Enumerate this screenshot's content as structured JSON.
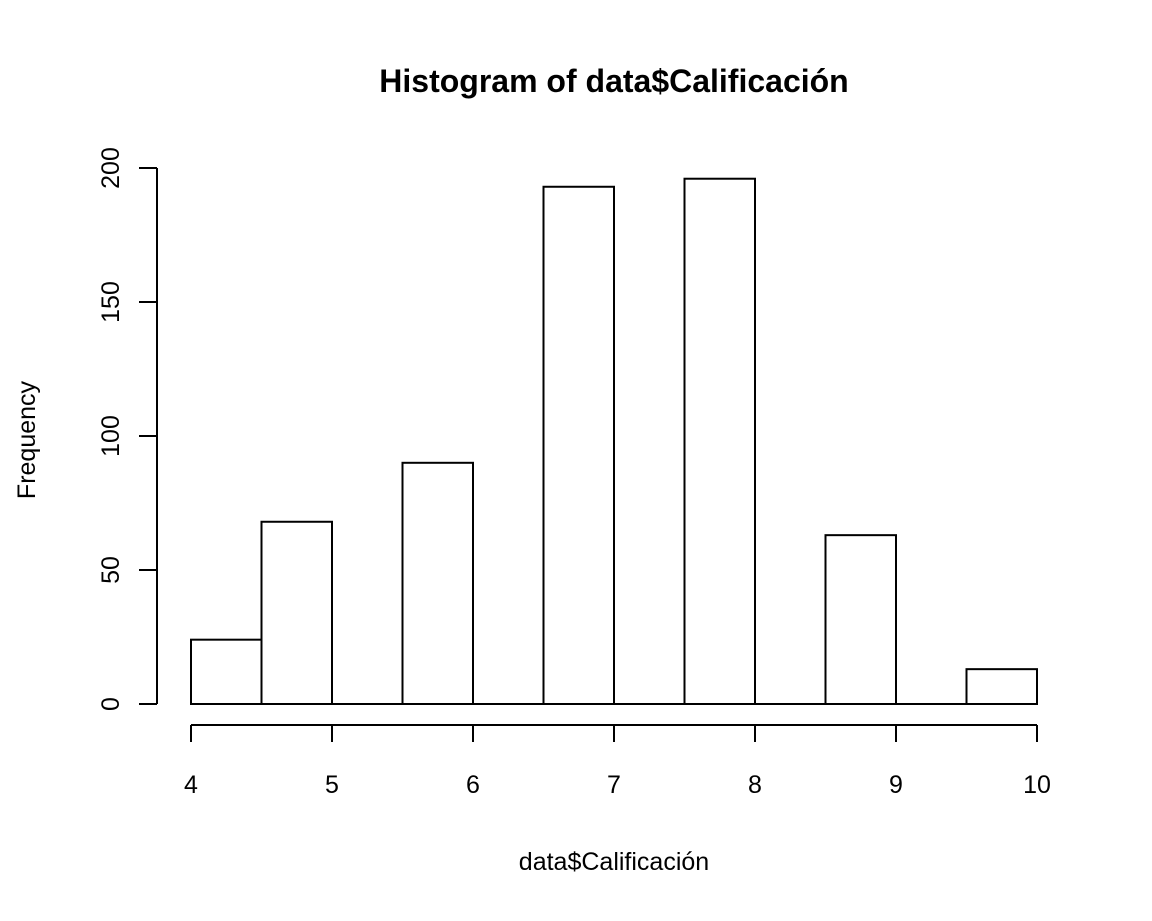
{
  "chart_data": {
    "type": "bar",
    "title": "Histogram of data$Calificación",
    "xlabel": "data$Calificación",
    "ylabel": "Frequency",
    "bins": [
      {
        "start": 4.0,
        "end": 4.5,
        "count": 24
      },
      {
        "start": 4.5,
        "end": 5.0,
        "count": 68
      },
      {
        "start": 5.0,
        "end": 5.5,
        "count": 0
      },
      {
        "start": 5.5,
        "end": 6.0,
        "count": 90
      },
      {
        "start": 6.0,
        "end": 6.5,
        "count": 0
      },
      {
        "start": 6.5,
        "end": 7.0,
        "count": 193
      },
      {
        "start": 7.0,
        "end": 7.5,
        "count": 0
      },
      {
        "start": 7.5,
        "end": 8.0,
        "count": 196
      },
      {
        "start": 8.0,
        "end": 8.5,
        "count": 0
      },
      {
        "start": 8.5,
        "end": 9.0,
        "count": 63
      },
      {
        "start": 9.0,
        "end": 9.5,
        "count": 0
      },
      {
        "start": 9.5,
        "end": 10.0,
        "count": 13
      }
    ],
    "xlim": [
      4,
      10
    ],
    "ylim": [
      0,
      200
    ],
    "x_ticks": [
      "4",
      "5",
      "6",
      "7",
      "8",
      "9",
      "10"
    ],
    "y_ticks": [
      "0",
      "50",
      "100",
      "150",
      "200"
    ],
    "grid": false,
    "legend": "none"
  }
}
